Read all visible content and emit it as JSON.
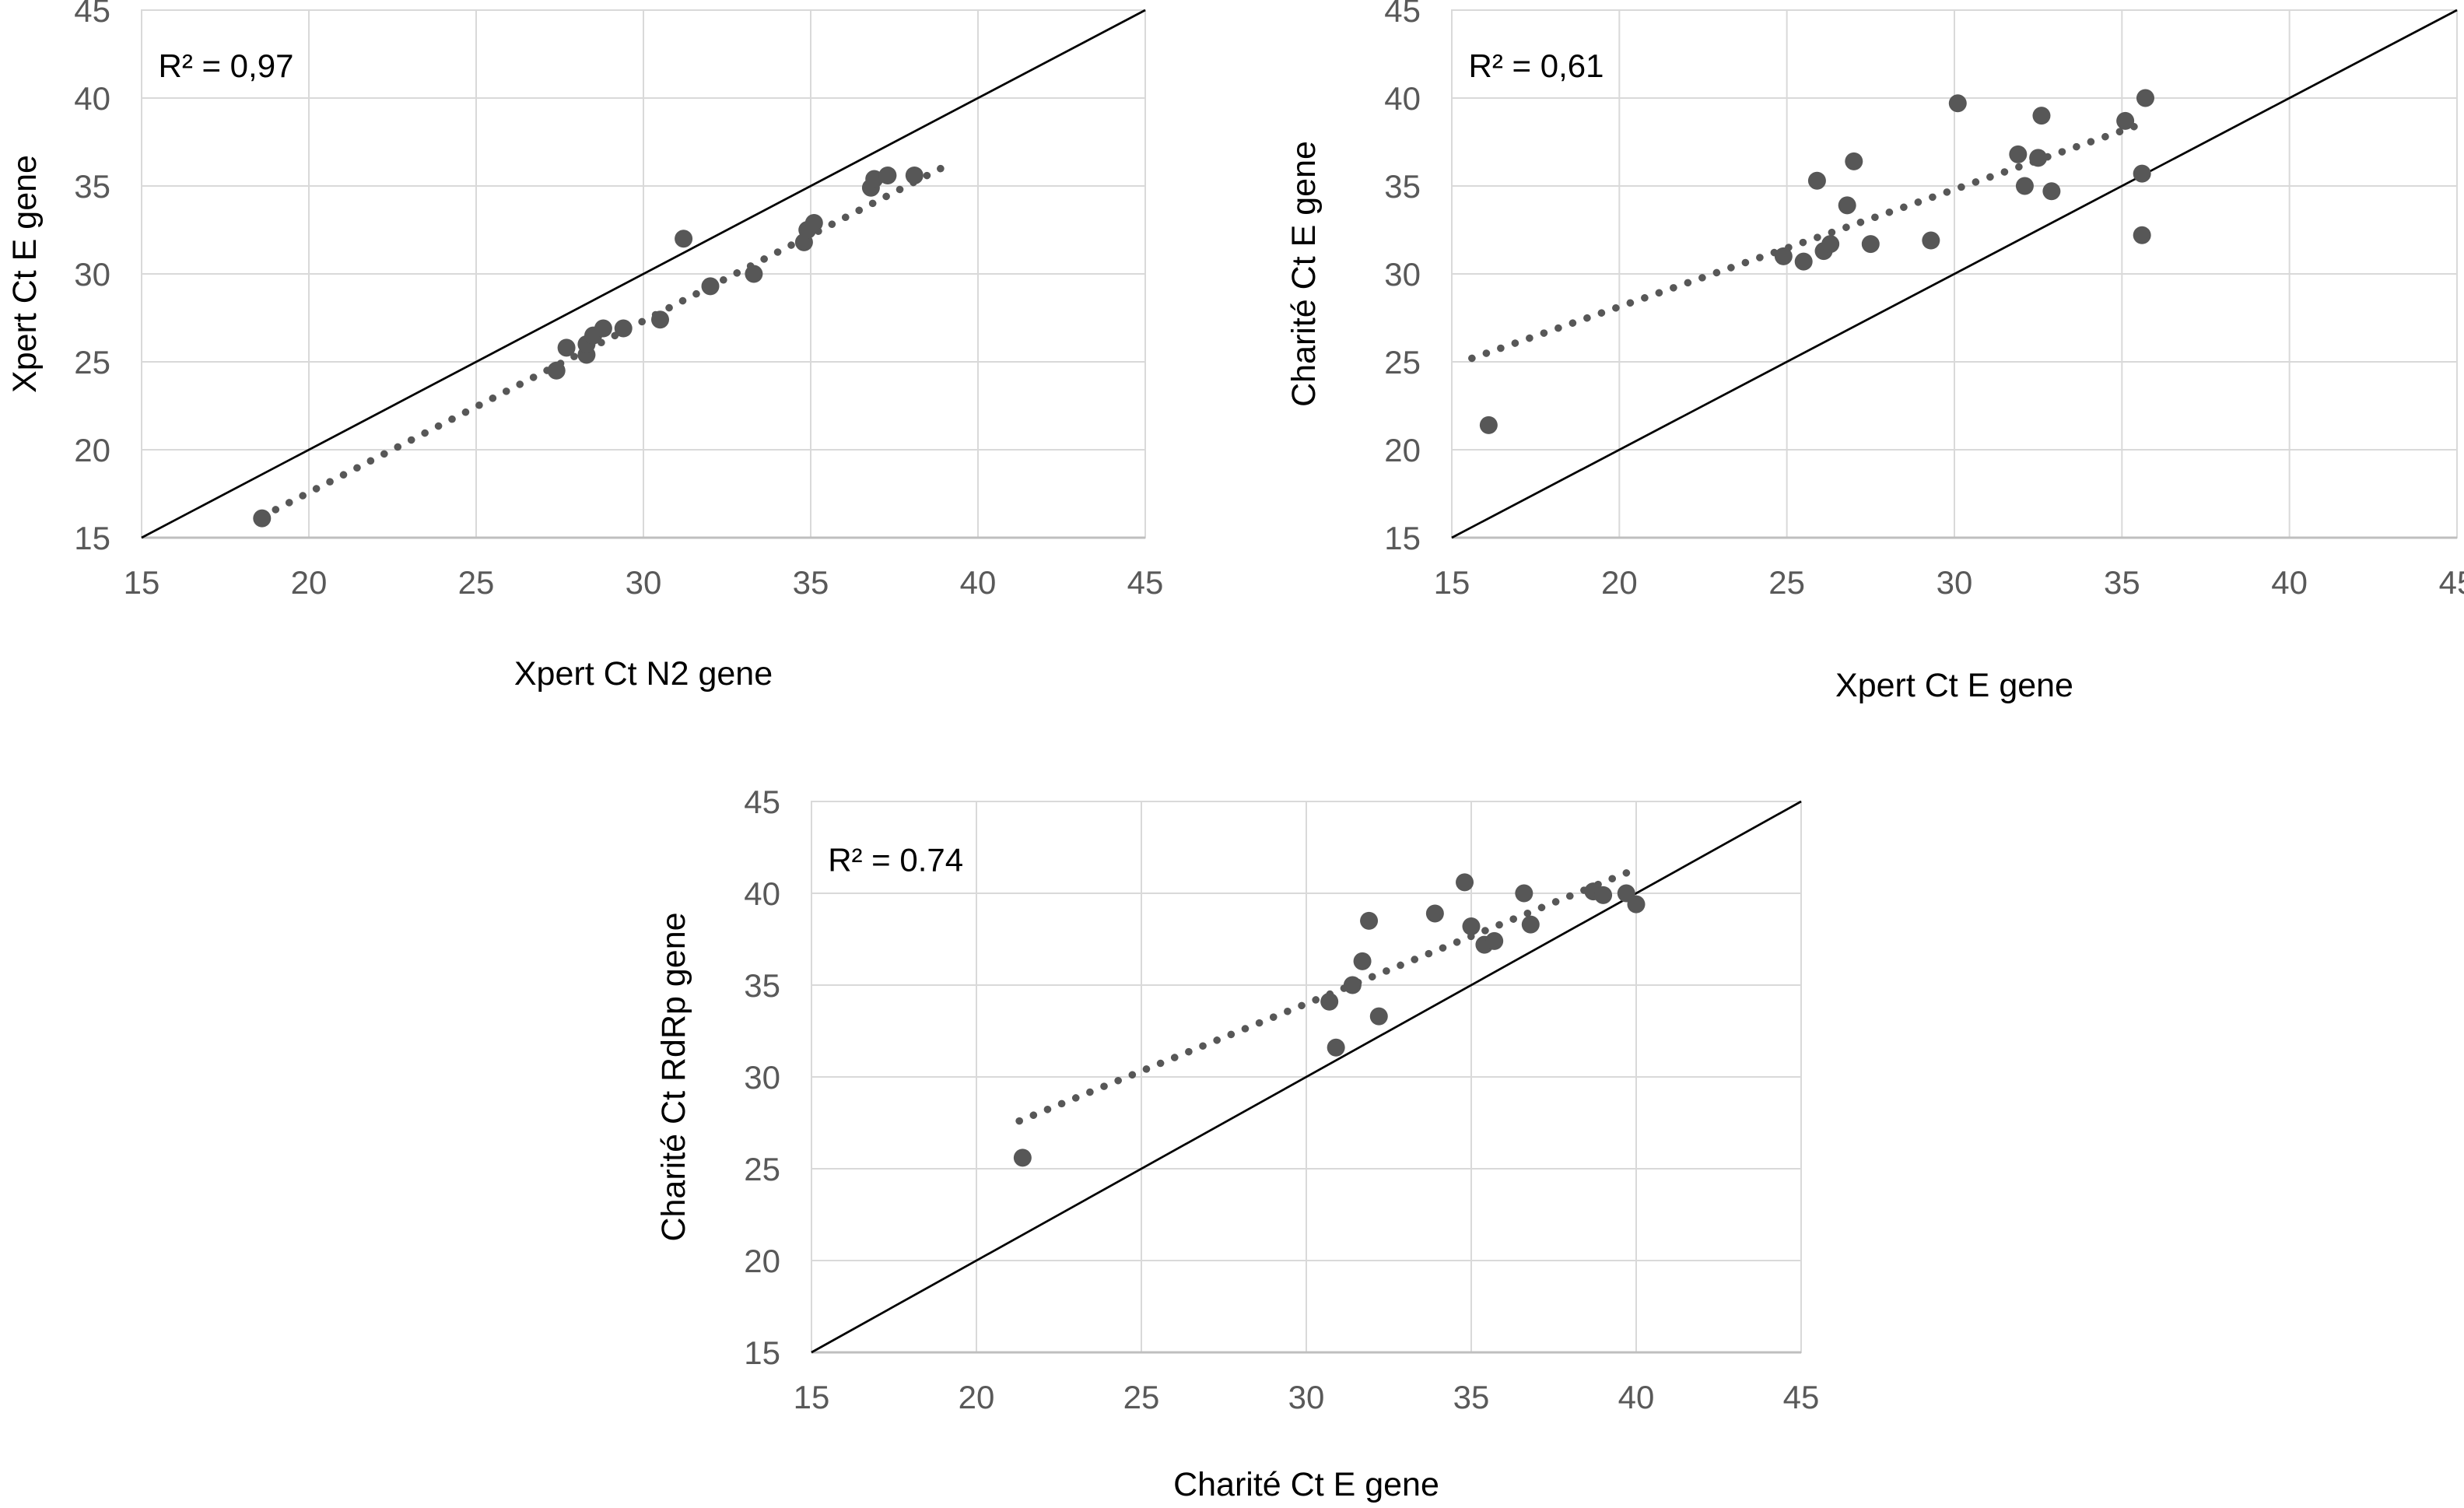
{
  "colors": {
    "marker": "#575757",
    "trend_line": "#575757",
    "identity_line": "#000000",
    "grid": "#d9d9d9",
    "axis_line": "#bfbfbf",
    "tick_text": "#595959",
    "title_text": "#000000",
    "r2_text": "#000000",
    "background": "#ffffff"
  },
  "chart_data": [
    {
      "type": "scatter",
      "name": "xpert-n2-vs-xpert-e",
      "r2_label": "R² = 0,97",
      "xlabel": "Xpert Ct N2 gene",
      "ylabel": "Xpert Ct E gene",
      "xlim": [
        15,
        45
      ],
      "ylim": [
        15,
        45
      ],
      "ticks": [
        15,
        20,
        25,
        30,
        35,
        40,
        45
      ],
      "grid": true,
      "legend": "none",
      "points": [
        [
          18.6,
          16.1
        ],
        [
          27.4,
          24.5
        ],
        [
          27.7,
          25.8
        ],
        [
          28.3,
          25.4
        ],
        [
          28.3,
          26.0
        ],
        [
          28.5,
          26.5
        ],
        [
          28.8,
          26.9
        ],
        [
          29.4,
          26.9
        ],
        [
          30.5,
          27.4
        ],
        [
          31.2,
          32.0
        ],
        [
          32.0,
          29.3
        ],
        [
          33.3,
          30.0
        ],
        [
          34.8,
          31.8
        ],
        [
          34.9,
          32.5
        ],
        [
          35.1,
          32.9
        ],
        [
          36.8,
          34.9
        ],
        [
          36.9,
          35.4
        ],
        [
          37.3,
          35.6
        ],
        [
          38.1,
          35.6
        ]
      ],
      "trendline": {
        "style": "dotted",
        "x1": 18.6,
        "y1": 16.2,
        "x2": 39.2,
        "y2": 36.3
      },
      "identity_line": {
        "x1": 15,
        "y1": 15,
        "x2": 45,
        "y2": 45
      }
    },
    {
      "type": "scatter",
      "name": "xpert-e-vs-charite-e",
      "r2_label": "R² = 0,61",
      "xlabel": "Xpert Ct E gene",
      "ylabel": "Charité Ct E gene",
      "xlim": [
        15,
        45
      ],
      "ylim": [
        15,
        45
      ],
      "ticks": [
        15,
        20,
        25,
        30,
        35,
        40,
        45
      ],
      "grid": true,
      "legend": "none",
      "points": [
        [
          16.1,
          21.4
        ],
        [
          24.9,
          31.0
        ],
        [
          25.5,
          30.7
        ],
        [
          25.9,
          35.3
        ],
        [
          26.1,
          31.3
        ],
        [
          26.3,
          31.7
        ],
        [
          26.8,
          33.9
        ],
        [
          27.0,
          36.4
        ],
        [
          27.5,
          31.7
        ],
        [
          29.3,
          31.9
        ],
        [
          30.1,
          39.7
        ],
        [
          31.9,
          36.8
        ],
        [
          32.1,
          35.0
        ],
        [
          32.5,
          36.6
        ],
        [
          32.6,
          39.0
        ],
        [
          32.9,
          34.7
        ],
        [
          35.1,
          38.7
        ],
        [
          35.6,
          32.2
        ],
        [
          35.6,
          35.7
        ],
        [
          35.7,
          40.0
        ]
      ],
      "trendline": {
        "style": "dotted",
        "x1": 15.6,
        "y1": 25.2,
        "x2": 35.4,
        "y2": 38.4
      },
      "identity_line": {
        "x1": 15,
        "y1": 15,
        "x2": 45,
        "y2": 45
      }
    },
    {
      "type": "scatter",
      "name": "charite-e-vs-charite-rdrp",
      "r2_label": "R² = 0.74",
      "xlabel": "Charité Ct E gene",
      "ylabel": "Charité Ct RdRp gene",
      "xlim": [
        15,
        45
      ],
      "ylim": [
        15,
        45
      ],
      "ticks": [
        15,
        20,
        25,
        30,
        35,
        40,
        45
      ],
      "grid": true,
      "legend": "none",
      "points": [
        [
          21.4,
          25.6
        ],
        [
          30.7,
          34.1
        ],
        [
          30.9,
          31.6
        ],
        [
          31.4,
          35.0
        ],
        [
          31.7,
          36.3
        ],
        [
          31.9,
          38.5
        ],
        [
          32.2,
          33.3
        ],
        [
          33.9,
          38.9
        ],
        [
          34.8,
          40.6
        ],
        [
          35.0,
          38.2
        ],
        [
          35.4,
          37.2
        ],
        [
          35.7,
          37.4
        ],
        [
          36.6,
          40.0
        ],
        [
          36.8,
          38.3
        ],
        [
          38.7,
          40.1
        ],
        [
          39.0,
          39.9
        ],
        [
          39.7,
          40.0
        ],
        [
          40.0,
          39.4
        ]
      ],
      "trendline": {
        "style": "dotted",
        "x1": 21.3,
        "y1": 27.6,
        "x2": 40.1,
        "y2": 41.4
      },
      "identity_line": {
        "x1": 15,
        "y1": 15,
        "x2": 45,
        "y2": 45
      }
    }
  ]
}
